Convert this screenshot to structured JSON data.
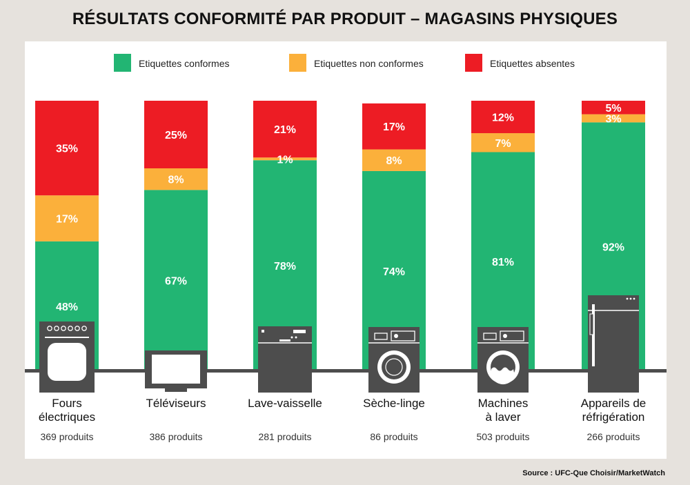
{
  "title": "RÉSULTATS CONFORMITÉ PAR PRODUIT – MAGASINS PHYSIQUES",
  "source": "Source : UFC-Que Choisir/MarketWatch",
  "colors": {
    "conformes": "#22b573",
    "non_conformes": "#fbb03b",
    "absentes": "#ed1c24",
    "appliance": "#4d4d4d",
    "background": "#e6e2dd"
  },
  "chart_data": {
    "type": "bar",
    "stacked": true,
    "legend_position": "top",
    "ylim": [
      0,
      100
    ],
    "categories": [
      {
        "line1": "Fours",
        "line2": "électriques",
        "count": "369 produits",
        "icon": "oven-icon"
      },
      {
        "line1": "Téléviseurs",
        "line2": "",
        "count": "386 produits",
        "icon": "tv-icon"
      },
      {
        "line1": "Lave-vaisselle",
        "line2": "",
        "count": "281 produits",
        "icon": "dishwasher-icon"
      },
      {
        "line1": "Sèche-linge",
        "line2": "",
        "count": "86 produits",
        "icon": "dryer-icon"
      },
      {
        "line1": "Machines",
        "line2": "à laver",
        "count": "503 produits",
        "icon": "washing-machine-icon"
      },
      {
        "line1": "Appareils de",
        "line2": "réfrigération",
        "count": "266 produits",
        "icon": "fridge-icon"
      }
    ],
    "series": [
      {
        "key": "conformes",
        "name": "Etiquettes conformes",
        "color": "#22b573",
        "values": [
          48,
          67,
          78,
          74,
          81,
          92
        ],
        "labels": [
          "48%",
          "67%",
          "78%",
          "74%",
          "81%",
          "92%"
        ]
      },
      {
        "key": "non_conformes",
        "name": "Etiquettes non conformes",
        "color": "#fbb03b",
        "values": [
          17,
          8,
          1,
          8,
          7,
          3
        ],
        "labels": [
          "17%",
          "8%",
          "1%",
          "8%",
          "7%",
          "3%"
        ]
      },
      {
        "key": "absentes",
        "name": "Etiquettes absentes",
        "color": "#ed1c24",
        "values": [
          35,
          25,
          21,
          17,
          12,
          5
        ],
        "labels": [
          "35%",
          "25%",
          "21%",
          "17%",
          "12%",
          "5%"
        ]
      }
    ]
  }
}
